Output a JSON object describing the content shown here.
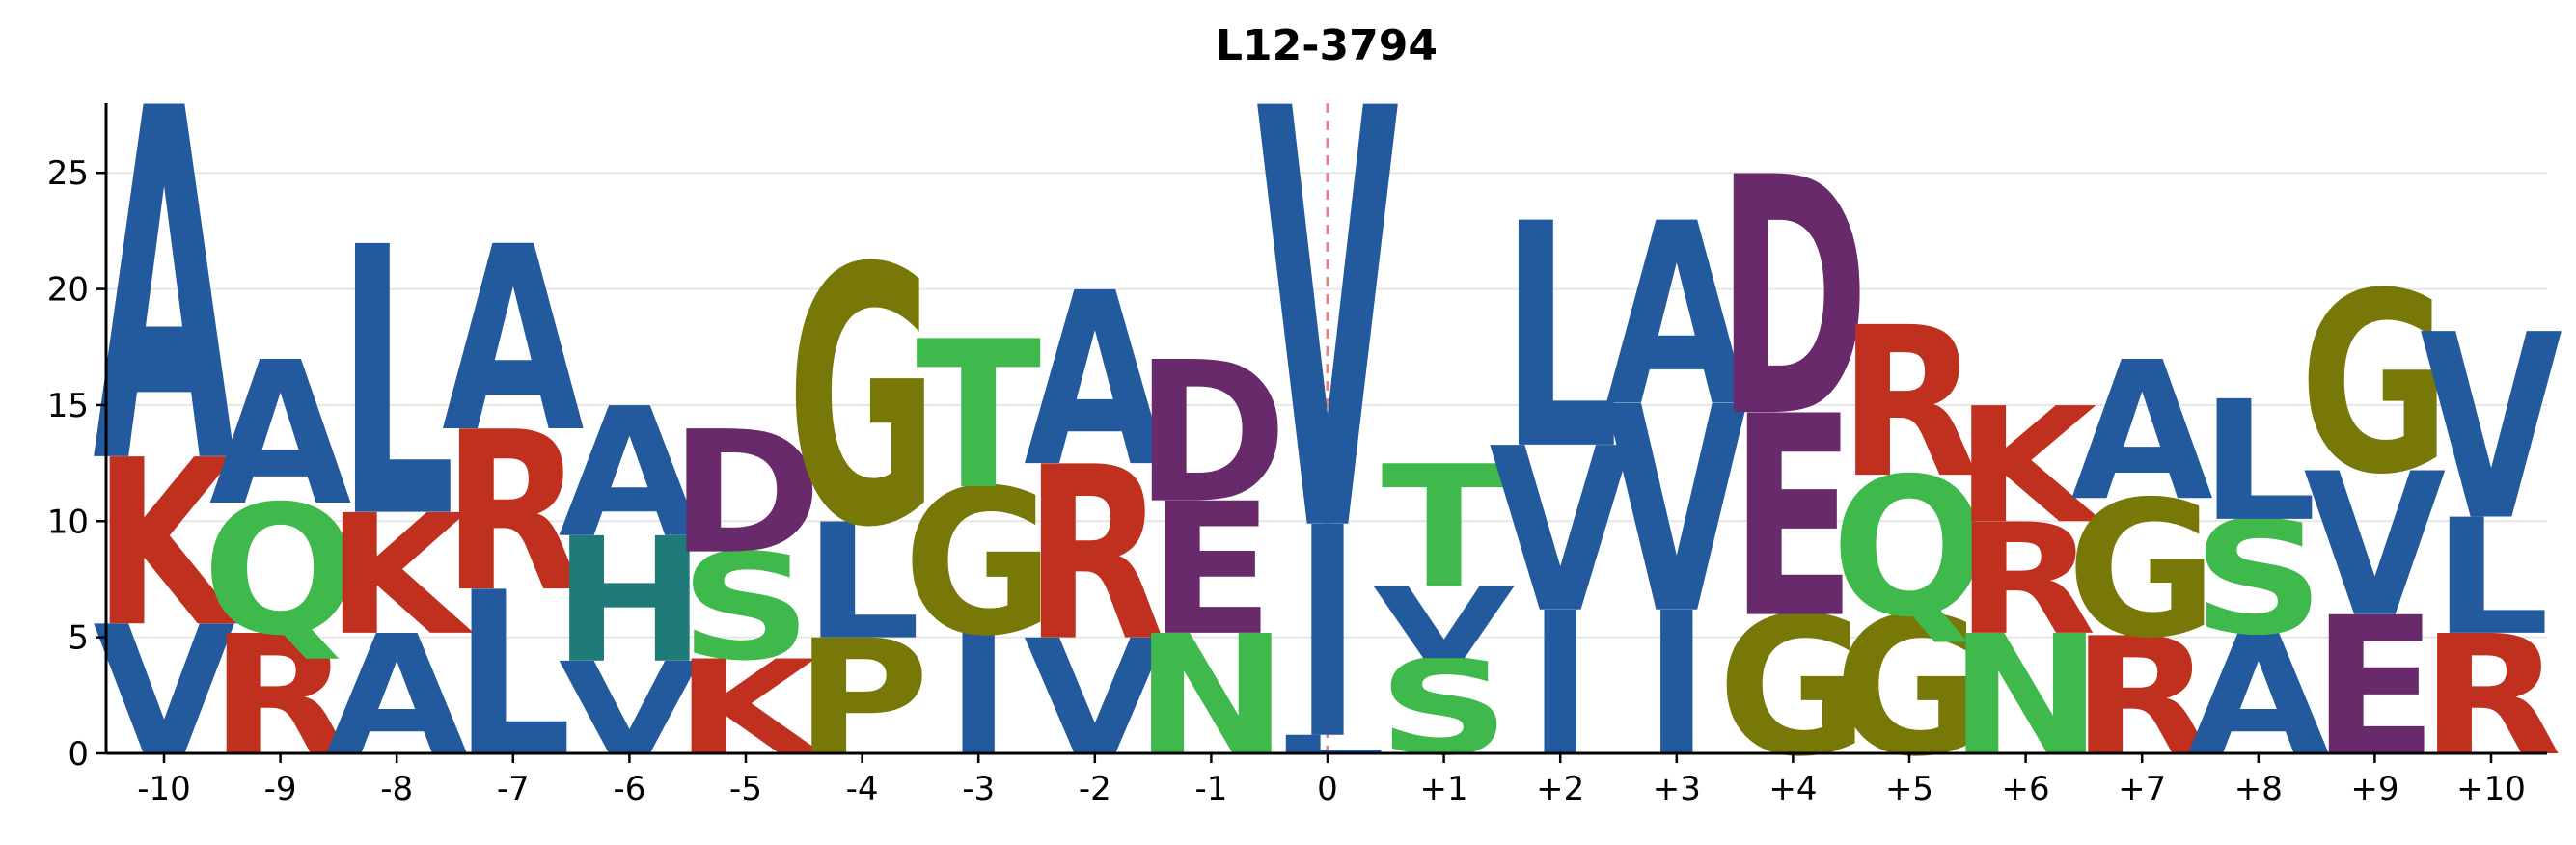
{
  "chart_data": {
    "type": "sequence_logo",
    "title": "L12-3794",
    "positions": [
      "-10",
      "-9",
      "-8",
      "-7",
      "-6",
      "-5",
      "-4",
      "-3",
      "-2",
      "-1",
      "0",
      "+1",
      "+2",
      "+3",
      "+4",
      "+5",
      "+6",
      "+7",
      "+8",
      "+9",
      "+10"
    ],
    "ylim": [
      0,
      28
    ],
    "yticks": [
      0,
      5,
      10,
      15,
      20,
      25
    ],
    "grid": true,
    "reference_line_position": "0",
    "colors": {
      "A": "#235a9e",
      "V": "#235a9e",
      "L": "#235a9e",
      "I": "#235a9e",
      "R": "#c0301f",
      "K": "#c0301f",
      "D": "#682a6b",
      "E": "#682a6b",
      "G": "#787809",
      "P": "#787809",
      "S": "#40b94c",
      "T": "#40b94c",
      "N": "#40b94c",
      "Q": "#40b94c",
      "H": "#1f7a78"
    },
    "stacks": [
      [
        {
          "letter": "V",
          "height": 5.6
        },
        {
          "letter": "K",
          "height": 7.2
        },
        {
          "letter": "A",
          "height": 15.2
        }
      ],
      [
        {
          "letter": "R",
          "height": 5.2
        },
        {
          "letter": "Q",
          "height": 5.6
        },
        {
          "letter": "A",
          "height": 6.2
        }
      ],
      [
        {
          "letter": "A",
          "height": 5.2
        },
        {
          "letter": "K",
          "height": 5.2
        },
        {
          "letter": "L",
          "height": 11.6
        }
      ],
      [
        {
          "letter": "L",
          "height": 7.1
        },
        {
          "letter": "R",
          "height": 6.9
        },
        {
          "letter": "A",
          "height": 8.0
        }
      ],
      [
        {
          "letter": "V",
          "height": 4.0
        },
        {
          "letter": "H",
          "height": 5.4
        },
        {
          "letter": "A",
          "height": 5.6
        }
      ],
      [
        {
          "letter": "K",
          "height": 4.1
        },
        {
          "letter": "S",
          "height": 4.6
        },
        {
          "letter": "D",
          "height": 5.3
        }
      ],
      [
        {
          "letter": "P",
          "height": 5.0
        },
        {
          "letter": "L",
          "height": 5.0
        },
        {
          "letter": "G",
          "height": 11.1
        }
      ],
      [
        {
          "letter": "I",
          "height": 5.2
        },
        {
          "letter": "G",
          "height": 6.3
        },
        {
          "letter": "T",
          "height": 6.4
        }
      ],
      [
        {
          "letter": "V",
          "height": 5.0
        },
        {
          "letter": "R",
          "height": 7.5
        },
        {
          "letter": "A",
          "height": 7.5
        }
      ],
      [
        {
          "letter": "N",
          "height": 5.2
        },
        {
          "letter": "E",
          "height": 5.7
        },
        {
          "letter": "D",
          "height": 6.1
        }
      ],
      [
        {
          "letter": "L",
          "height": 0.8
        },
        {
          "letter": "I",
          "height": 9.1
        },
        {
          "letter": "V",
          "height": 18.1
        }
      ],
      [
        {
          "letter": "S",
          "height": 4.1
        },
        {
          "letter": "V",
          "height": 3.1
        },
        {
          "letter": "T",
          "height": 5.3
        }
      ],
      [
        {
          "letter": "I",
          "height": 6.2
        },
        {
          "letter": "V",
          "height": 7.1
        },
        {
          "letter": "L",
          "height": 9.7
        }
      ],
      [
        {
          "letter": "I",
          "height": 6.2
        },
        {
          "letter": "V",
          "height": 8.9
        },
        {
          "letter": "A",
          "height": 7.9
        }
      ],
      [
        {
          "letter": "G",
          "height": 6.0
        },
        {
          "letter": "E",
          "height": 8.7
        },
        {
          "letter": "D",
          "height": 10.3
        }
      ],
      [
        {
          "letter": "G",
          "height": 6.0
        },
        {
          "letter": "Q",
          "height": 6.0
        },
        {
          "letter": "R",
          "height": 6.5
        }
      ],
      [
        {
          "letter": "N",
          "height": 5.2
        },
        {
          "letter": "R",
          "height": 4.8
        },
        {
          "letter": "K",
          "height": 5.0
        }
      ],
      [
        {
          "letter": "R",
          "height": 5.1
        },
        {
          "letter": "G",
          "height": 5.9
        },
        {
          "letter": "A",
          "height": 6.0
        }
      ],
      [
        {
          "letter": "A",
          "height": 5.2
        },
        {
          "letter": "S",
          "height": 4.9
        },
        {
          "letter": "L",
          "height": 5.2
        }
      ],
      [
        {
          "letter": "E",
          "height": 6.0
        },
        {
          "letter": "V",
          "height": 6.2
        },
        {
          "letter": "G",
          "height": 7.8
        }
      ],
      [
        {
          "letter": "R",
          "height": 5.2
        },
        {
          "letter": "L",
          "height": 5.0
        },
        {
          "letter": "V",
          "height": 8.0
        }
      ]
    ]
  }
}
